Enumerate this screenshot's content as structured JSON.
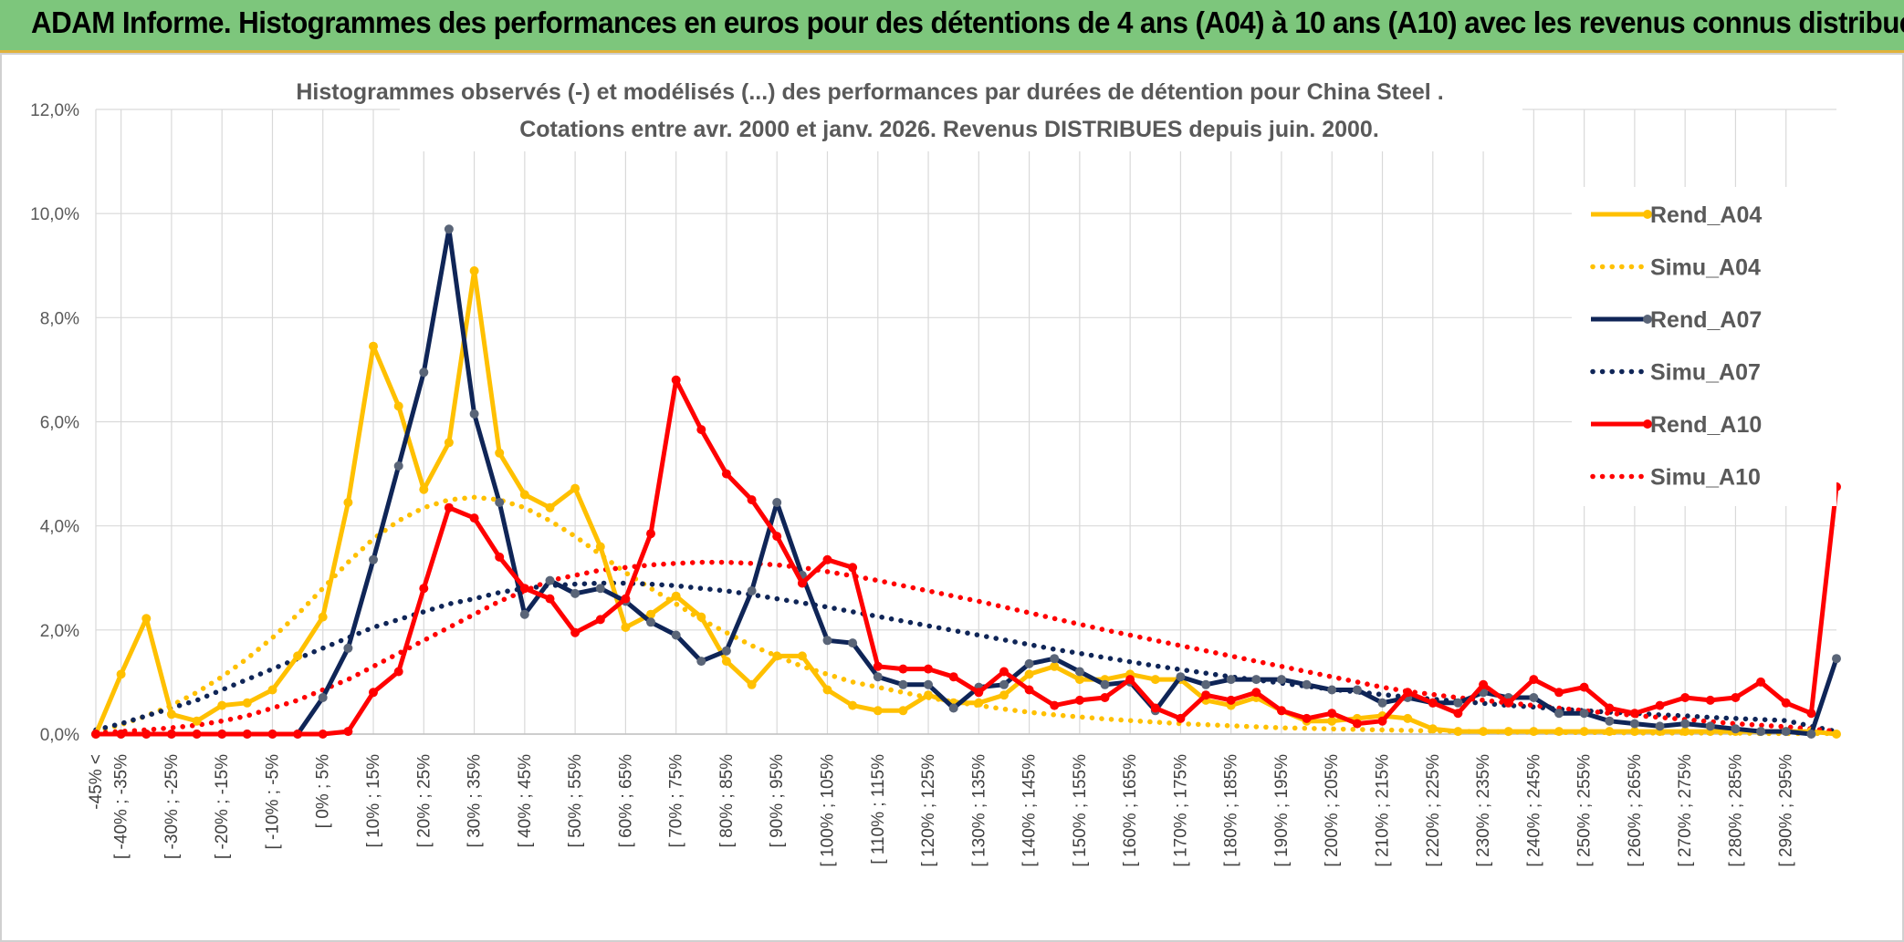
{
  "header": {
    "title": "ADAM Informe. Histogrammes des performances en euros pour des détentions de 4 ans (A04) à 10 ans (A10) avec les revenus connus distribués"
  },
  "chart_data": {
    "type": "line",
    "title_line1": "Histogrammes observés (-) et modélisés (...) des performances par durées de détention pour China Steel .",
    "title_line2": "Cotations entre avr. 2000 et janv. 2026. Revenus DISTRIBUES depuis juin. 2000.",
    "ylim": [
      0,
      12
    ],
    "y_ticks": [
      "0,0%",
      "2,0%",
      "4,0%",
      "6,0%",
      "8,0%",
      "10,0%",
      "12,0%"
    ],
    "y_tick_values": [
      0,
      2,
      4,
      6,
      8,
      10,
      12
    ],
    "grid": true,
    "legend_position": "right",
    "x_labels": [
      "-45% <",
      "[ -40% ; -35%",
      "[ -30% ; -25%",
      "[ -20% ; -15%",
      "[ -10% ; -5%",
      "[ 0% ; 5%",
      "[ 10% ; 15%",
      "[ 20% ; 25%",
      "[ 30% ; 35%",
      "[ 40% ; 45%",
      "[ 50% ; 55%",
      "[ 60% ; 65%",
      "[ 70% ; 75%",
      "[ 80% ; 85%",
      "[ 90% ; 95%",
      "[ 100% ; 105%",
      "[ 110% ; 115%",
      "[ 120% ; 125%",
      "[ 130% ; 135%",
      "[ 140% ; 145%",
      "[ 150% ; 155%",
      "[ 160% ; 165%",
      "[ 170% ; 175%",
      "[ 180% ; 185%",
      "[ 190% ; 195%",
      "[ 200% ; 205%",
      "[ 210% ; 215%",
      "[ 220% ; 225%",
      "[ 230% ; 235%",
      "[ 240% ; 245%",
      "[ 250% ; 255%",
      "[ 260% ; 265%",
      "[ 270% ; 275%",
      "[ 280% ; 285%",
      "[ 290% ; 295%"
    ],
    "x_label_values": [
      -45,
      -40,
      -30,
      -20,
      -10,
      0,
      10,
      20,
      30,
      40,
      50,
      60,
      70,
      80,
      90,
      100,
      110,
      120,
      130,
      140,
      150,
      160,
      170,
      180,
      190,
      200,
      210,
      220,
      230,
      240,
      250,
      260,
      270,
      280,
      290
    ],
    "x_min": -45,
    "x_max": 300,
    "x_step": 5,
    "series": [
      {
        "name": "Rend_A04",
        "color": "#FFC000",
        "style": "solid",
        "values": [
          0.0,
          1.15,
          2.22,
          0.38,
          0.25,
          0.55,
          0.6,
          0.85,
          1.5,
          2.25,
          4.45,
          7.45,
          6.3,
          4.7,
          5.6,
          8.9,
          5.4,
          4.6,
          4.35,
          4.72,
          3.6,
          2.05,
          2.3,
          2.65,
          2.25,
          1.4,
          0.95,
          1.5,
          1.5,
          0.85,
          0.55,
          0.45,
          0.45,
          0.75,
          0.6,
          0.6,
          0.75,
          1.15,
          1.3,
          1.05,
          1.05,
          1.15,
          1.05,
          1.05,
          0.65,
          0.55,
          0.7,
          0.45,
          0.25,
          0.25,
          0.3,
          0.35,
          0.3,
          0.1,
          0.05,
          0.05,
          0.05,
          0.05,
          0.05,
          0.05,
          0.05,
          0.05,
          0.05,
          0.05,
          0.05,
          0.05,
          0.05,
          0.05,
          0.05,
          0.0
        ]
      },
      {
        "name": "Simu_A04",
        "color": "#FFC000",
        "style": "dotted",
        "values": [
          0.05,
          0.18,
          0.35,
          0.55,
          0.8,
          1.1,
          1.45,
          1.85,
          2.3,
          2.8,
          3.3,
          3.75,
          4.1,
          4.35,
          4.5,
          4.55,
          4.5,
          4.35,
          4.1,
          3.8,
          3.45,
          3.1,
          2.8,
          2.5,
          2.2,
          1.95,
          1.7,
          1.5,
          1.3,
          1.15,
          1.0,
          0.9,
          0.8,
          0.7,
          0.62,
          0.55,
          0.48,
          0.42,
          0.37,
          0.33,
          0.29,
          0.26,
          0.23,
          0.2,
          0.18,
          0.16,
          0.14,
          0.12,
          0.11,
          0.1,
          0.09,
          0.08,
          0.07,
          0.06,
          0.05,
          0.05,
          0.04,
          0.04,
          0.03,
          0.03,
          0.03,
          0.02,
          0.02,
          0.02,
          0.02,
          0.02,
          0.01,
          0.01,
          0.01,
          0.01
        ]
      },
      {
        "name": "Rend_A07",
        "color": "#0F2557",
        "style": "solid",
        "values": [
          0.0,
          0.0,
          0.0,
          0.0,
          0.0,
          0.0,
          0.0,
          0.0,
          0.0,
          0.7,
          1.65,
          3.35,
          5.15,
          6.95,
          9.7,
          6.15,
          4.45,
          2.3,
          2.95,
          2.7,
          2.8,
          2.55,
          2.15,
          1.9,
          1.4,
          1.6,
          2.75,
          4.45,
          3.05,
          1.8,
          1.75,
          1.1,
          0.95,
          0.95,
          0.5,
          0.9,
          0.95,
          1.35,
          1.45,
          1.2,
          0.95,
          1.0,
          0.45,
          1.1,
          0.95,
          1.05,
          1.05,
          1.05,
          0.95,
          0.85,
          0.85,
          0.6,
          0.7,
          0.6,
          0.6,
          0.8,
          0.7,
          0.7,
          0.4,
          0.4,
          0.25,
          0.2,
          0.15,
          0.2,
          0.15,
          0.1,
          0.05,
          0.05,
          0.0,
          1.45
        ]
      },
      {
        "name": "Simu_A07",
        "color": "#0F2557",
        "style": "dotted",
        "values": [
          0.08,
          0.2,
          0.35,
          0.5,
          0.65,
          0.85,
          1.05,
          1.25,
          1.45,
          1.65,
          1.85,
          2.05,
          2.2,
          2.35,
          2.5,
          2.6,
          2.72,
          2.8,
          2.85,
          2.88,
          2.9,
          2.9,
          2.88,
          2.85,
          2.8,
          2.75,
          2.68,
          2.6,
          2.52,
          2.44,
          2.35,
          2.26,
          2.17,
          2.08,
          1.99,
          1.9,
          1.81,
          1.72,
          1.63,
          1.55,
          1.47,
          1.39,
          1.31,
          1.24,
          1.17,
          1.1,
          1.04,
          0.98,
          0.92,
          0.86,
          0.81,
          0.76,
          0.71,
          0.67,
          0.63,
          0.59,
          0.55,
          0.52,
          0.48,
          0.45,
          0.42,
          0.4,
          0.37,
          0.35,
          0.32,
          0.3,
          0.28,
          0.26,
          0.15,
          0.05
        ]
      },
      {
        "name": "Rend_A10",
        "color": "#FF0000",
        "style": "solid",
        "values": [
          0.0,
          0.0,
          0.0,
          0.0,
          0.0,
          0.0,
          0.0,
          0.0,
          0.0,
          0.0,
          0.05,
          0.8,
          1.2,
          2.8,
          4.35,
          4.15,
          3.4,
          2.8,
          2.6,
          1.95,
          2.2,
          2.6,
          3.85,
          6.8,
          5.85,
          5.0,
          4.5,
          3.8,
          2.9,
          3.35,
          3.2,
          1.3,
          1.25,
          1.25,
          1.1,
          0.8,
          1.2,
          0.85,
          0.55,
          0.65,
          0.7,
          1.05,
          0.5,
          0.3,
          0.75,
          0.65,
          0.8,
          0.45,
          0.3,
          0.4,
          0.2,
          0.25,
          0.8,
          0.6,
          0.4,
          0.95,
          0.6,
          1.05,
          0.8,
          0.9,
          0.5,
          0.4,
          0.55,
          0.7,
          0.65,
          0.7,
          1.0,
          0.6,
          0.4,
          4.75
        ]
      },
      {
        "name": "Simu_A10",
        "color": "#FF0000",
        "style": "dotted",
        "values": [
          0.02,
          0.05,
          0.08,
          0.12,
          0.17,
          0.25,
          0.35,
          0.5,
          0.65,
          0.85,
          1.05,
          1.3,
          1.55,
          1.8,
          2.05,
          2.3,
          2.55,
          2.75,
          2.95,
          3.05,
          3.15,
          3.2,
          3.25,
          3.28,
          3.3,
          3.3,
          3.28,
          3.25,
          3.2,
          3.12,
          3.04,
          2.95,
          2.85,
          2.75,
          2.65,
          2.55,
          2.44,
          2.33,
          2.22,
          2.11,
          2.0,
          1.9,
          1.8,
          1.7,
          1.6,
          1.5,
          1.4,
          1.3,
          1.2,
          1.1,
          1.0,
          0.9,
          0.82,
          0.76,
          0.7,
          0.65,
          0.6,
          0.55,
          0.5,
          0.45,
          0.4,
          0.36,
          0.32,
          0.28,
          0.24,
          0.2,
          0.17,
          0.14,
          0.1,
          0.05
        ]
      }
    ]
  }
}
